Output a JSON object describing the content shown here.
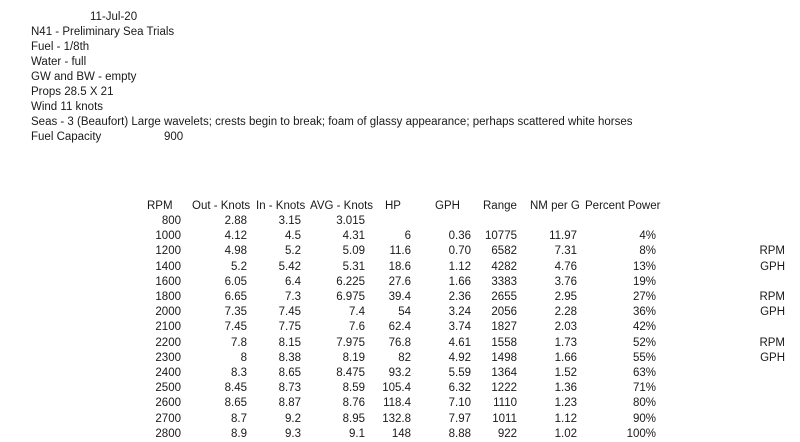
{
  "sheet": {
    "date": "11-Jul-20",
    "info_lines": [
      "N41 - Preliminary Sea Trials",
      "Fuel - 1/8th",
      "Water - full",
      "GW and BW - empty",
      "Props 28.5 X 21",
      "Wind 11 knots",
      "Seas - 3 (Beaufort) Large wavelets; crests begin to break; foam of glassy appearance; perhaps scattered white horses"
    ],
    "fuel_capacity_label": "Fuel Capacity",
    "fuel_capacity_value": "900"
  },
  "table": {
    "headers": [
      "RPM",
      "Out - Knots",
      "In - Knots",
      "AVG - Knots",
      "HP",
      "GPH",
      "Range",
      "NM per G",
      "Percent Power"
    ],
    "rows": [
      [
        "800",
        "2.88",
        "3.15",
        "3.015",
        "",
        "",
        "",
        "",
        "",
        ""
      ],
      [
        "1000",
        "4.12",
        "4.5",
        "4.31",
        "6",
        "0.36",
        "10775",
        "11.97",
        "4%",
        ""
      ],
      [
        "1200",
        "4.98",
        "5.2",
        "5.09",
        "11.6",
        "0.70",
        "6582",
        "7.31",
        "8%",
        "RPM"
      ],
      [
        "1400",
        "5.2",
        "5.42",
        "5.31",
        "18.6",
        "1.12",
        "4282",
        "4.76",
        "13%",
        "GPH"
      ],
      [
        "1600",
        "6.05",
        "6.4",
        "6.225",
        "27.6",
        "1.66",
        "3383",
        "3.76",
        "19%",
        ""
      ],
      [
        "1800",
        "6.65",
        "7.3",
        "6.975",
        "39.4",
        "2.36",
        "2655",
        "2.95",
        "27%",
        "RPM"
      ],
      [
        "2000",
        "7.35",
        "7.45",
        "7.4",
        "54",
        "3.24",
        "2056",
        "2.28",
        "36%",
        "GPH"
      ],
      [
        "2100",
        "7.45",
        "7.75",
        "7.6",
        "62.4",
        "3.74",
        "1827",
        "2.03",
        "42%",
        ""
      ],
      [
        "2200",
        "7.8",
        "8.15",
        "7.975",
        "76.8",
        "4.61",
        "1558",
        "1.73",
        "52%",
        "RPM"
      ],
      [
        "2300",
        "8",
        "8.38",
        "8.19",
        "82",
        "4.92",
        "1498",
        "1.66",
        "55%",
        "GPH"
      ],
      [
        "2400",
        "8.3",
        "8.65",
        "8.475",
        "93.2",
        "5.59",
        "1364",
        "1.52",
        "63%",
        ""
      ],
      [
        "2500",
        "8.45",
        "8.73",
        "8.59",
        "105.4",
        "6.32",
        "1222",
        "1.36",
        "71%",
        ""
      ],
      [
        "2600",
        "8.65",
        "8.87",
        "8.76",
        "118.4",
        "7.10",
        "1110",
        "1.23",
        "80%",
        ""
      ],
      [
        "2700",
        "8.7",
        "9.2",
        "8.95",
        "132.8",
        "7.97",
        "1011",
        "1.12",
        "90%",
        ""
      ],
      [
        "2800",
        "8.9",
        "9.3",
        "9.1",
        "148",
        "8.88",
        "922",
        "1.02",
        "100%",
        ""
      ]
    ]
  }
}
